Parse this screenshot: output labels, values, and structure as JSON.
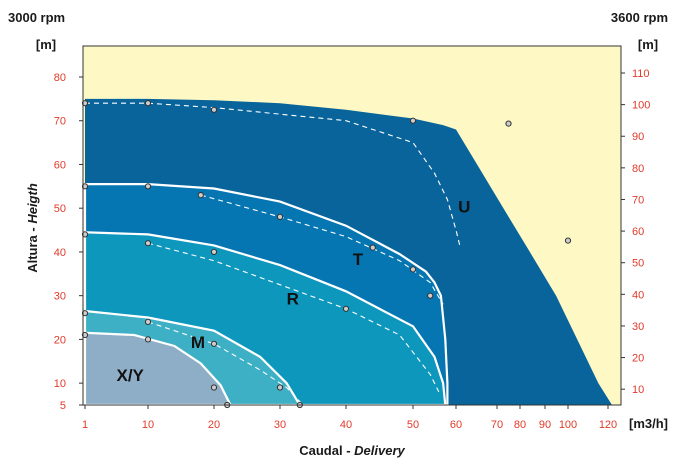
{
  "header": {
    "left_speed": "3000 rpm",
    "right_speed": "3600 rpm",
    "left_unit": "[m]",
    "right_unit": "[m]",
    "x_unit": "[m3/h]"
  },
  "chart_data": {
    "type": "area",
    "xlabel": "Caudal",
    "xlabel_translation": "Delivery",
    "ylabel": "Altura",
    "ylabel_translation": "Heigth",
    "x_ticks_3000": [
      1,
      10,
      20,
      30,
      40,
      50,
      60
    ],
    "x_ticks_3600": [
      70,
      80,
      90,
      100,
      120
    ],
    "x_ticks_3600_labels": [
      "70",
      "80",
      "90",
      "100",
      "120"
    ],
    "y_ticks_3000": [
      5,
      10,
      20,
      30,
      40,
      50,
      60,
      70,
      80
    ],
    "y_ticks_3600": [
      10,
      20,
      30,
      40,
      50,
      60,
      70,
      80,
      90,
      100,
      110
    ],
    "xlim_3000": [
      1,
      61
    ],
    "ylim_3000": [
      5,
      85
    ],
    "ylim_3600": [
      5,
      118
    ],
    "colors": {
      "background": "#fdf8c4",
      "U": "#08649b",
      "T": "#0576b2",
      "R": "#0d97bd",
      "M": "#3eb0c6",
      "XY": "#8eaec7",
      "tick": "#e03a2a",
      "boundary": "#ffffff"
    },
    "series": [
      {
        "name": "U",
        "boundary_3000": [
          [
            1,
            75
          ],
          [
            10,
            75
          ],
          [
            20,
            74.7
          ],
          [
            30,
            74
          ],
          [
            40,
            72.5
          ],
          [
            50,
            70.5
          ],
          [
            57,
            69
          ],
          [
            60,
            68
          ],
          [
            62,
            60
          ],
          [
            64.5,
            50
          ],
          [
            67,
            40
          ],
          [
            69.5,
            30
          ],
          [
            71.5,
            20
          ],
          [
            73.5,
            10
          ],
          [
            74.8,
            5
          ]
        ],
        "dashed_3600": [
          [
            1,
            74
          ],
          [
            10,
            74
          ],
          [
            20,
            73
          ],
          [
            40,
            70
          ],
          [
            50,
            65
          ],
          [
            55,
            58
          ],
          [
            58,
            52
          ],
          [
            60,
            45
          ],
          [
            61,
            41
          ]
        ],
        "points": [
          [
            1,
            74
          ],
          [
            10,
            74
          ],
          [
            20,
            72.5
          ],
          [
            50,
            70
          ],
          [
            75,
            94
          ],
          [
            100,
            57
          ]
        ]
      },
      {
        "name": "T",
        "boundary_3000": [
          [
            1,
            55.5
          ],
          [
            10,
            55.5
          ],
          [
            20,
            54.5
          ],
          [
            30,
            51.5
          ],
          [
            40,
            46
          ],
          [
            48,
            39.5
          ],
          [
            53,
            35.5
          ],
          [
            55,
            33
          ],
          [
            56.5,
            30
          ],
          [
            57.5,
            20
          ],
          [
            58,
            10
          ],
          [
            58,
            5
          ]
        ],
        "dashed_3600": [
          [
            18,
            53
          ],
          [
            30,
            48
          ],
          [
            40,
            43.5
          ],
          [
            48,
            38
          ],
          [
            54,
            33
          ],
          [
            57,
            28
          ]
        ],
        "points": [
          [
            1,
            55
          ],
          [
            10,
            55
          ],
          [
            18,
            53
          ],
          [
            30,
            48
          ],
          [
            44,
            41
          ],
          [
            50,
            36
          ],
          [
            54,
            30
          ]
        ]
      },
      {
        "name": "R",
        "boundary_3000": [
          [
            1,
            44.5
          ],
          [
            10,
            44
          ],
          [
            20,
            41.5
          ],
          [
            30,
            37
          ],
          [
            40,
            31
          ],
          [
            50,
            23
          ],
          [
            55,
            16
          ],
          [
            57,
            10
          ],
          [
            57.5,
            5
          ]
        ],
        "dashed_3600": [
          [
            10,
            42
          ],
          [
            20,
            38
          ],
          [
            30,
            32.5
          ],
          [
            40,
            27
          ],
          [
            48,
            21
          ],
          [
            54,
            12
          ],
          [
            56,
            8
          ]
        ],
        "points": [
          [
            1,
            44
          ],
          [
            10,
            42
          ],
          [
            20,
            40
          ],
          [
            40,
            27
          ]
        ]
      },
      {
        "name": "M",
        "boundary_3000": [
          [
            1,
            26.5
          ],
          [
            10,
            25
          ],
          [
            20,
            22
          ],
          [
            27,
            16
          ],
          [
            31,
            10
          ],
          [
            33,
            5
          ]
        ],
        "dashed_3600": [
          [
            10,
            24
          ],
          [
            20,
            19
          ],
          [
            27,
            13
          ],
          [
            31,
            9
          ],
          [
            33.5,
            5
          ]
        ],
        "points": [
          [
            1,
            26
          ],
          [
            10,
            24
          ],
          [
            20,
            19
          ],
          [
            30,
            9
          ],
          [
            33,
            5
          ]
        ]
      },
      {
        "name": "X/Y",
        "boundary_3000": [
          [
            1,
            21.5
          ],
          [
            8,
            21
          ],
          [
            14,
            18.5
          ],
          [
            18,
            14.5
          ],
          [
            21,
            9.5
          ],
          [
            22.5,
            5
          ]
        ],
        "dashed_3600": [],
        "points": [
          [
            1,
            21
          ],
          [
            10,
            20
          ],
          [
            20,
            9
          ],
          [
            22,
            5
          ]
        ]
      }
    ],
    "zone_labels": [
      {
        "text": "U",
        "at": [
          60.5,
          49
        ]
      },
      {
        "text": "T",
        "at": [
          41,
          37
        ]
      },
      {
        "text": "R",
        "at": [
          31,
          28
        ]
      },
      {
        "text": "M",
        "at": [
          16.5,
          18
        ]
      },
      {
        "text": "X/Y",
        "at": [
          5.5,
          10.5
        ]
      }
    ]
  }
}
